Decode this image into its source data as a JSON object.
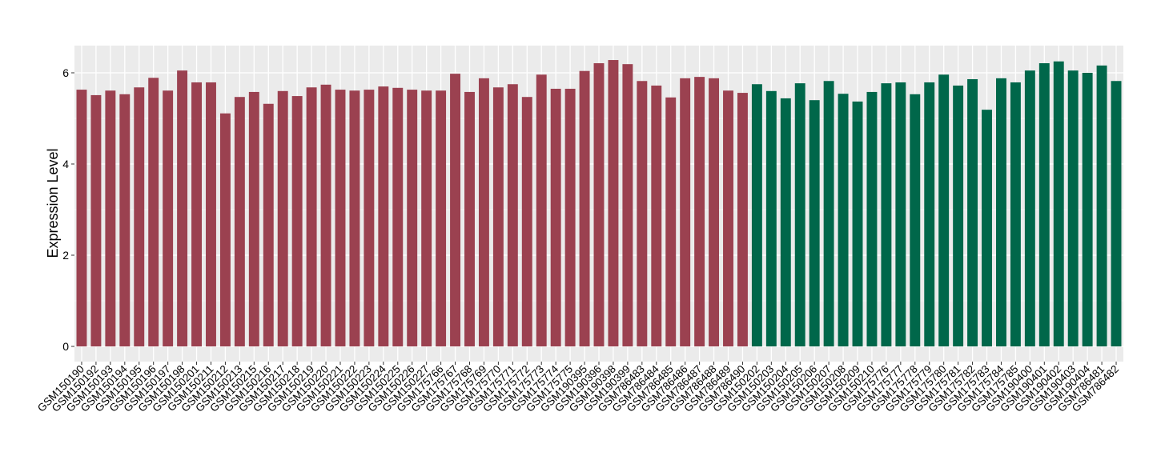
{
  "chart_data": {
    "type": "bar",
    "title": "",
    "xlabel": "",
    "ylabel": "Expression Level",
    "ylim": [
      0,
      6.55
    ],
    "yticks": [
      0,
      2,
      4,
      6
    ],
    "grid": true,
    "legend": "none",
    "colors": {
      "group1": "#9b4150",
      "group2": "#00674a",
      "panel": "#ebebeb",
      "grid": "#ffffff"
    },
    "series": [
      {
        "color": "#9b4150",
        "categories": [
          "GSM150190",
          "GSM150192",
          "GSM150193",
          "GSM150194",
          "GSM150195",
          "GSM150196",
          "GSM150197",
          "GSM150198",
          "GSM150201",
          "GSM150211",
          "GSM150212",
          "GSM150213",
          "GSM150215",
          "GSM150216",
          "GSM150217",
          "GSM150218",
          "GSM150219",
          "GSM150220",
          "GSM150221",
          "GSM150222",
          "GSM150223",
          "GSM150224",
          "GSM150225",
          "GSM150226",
          "GSM150227",
          "GSM175766",
          "GSM175767",
          "GSM175768",
          "GSM175769",
          "GSM175770",
          "GSM175771",
          "GSM175772",
          "GSM175773",
          "GSM175774",
          "GSM175775",
          "GSM190395",
          "GSM190396",
          "GSM190398",
          "GSM190399",
          "GSM786483",
          "GSM786484",
          "GSM786485",
          "GSM786486",
          "GSM786487",
          "GSM786488",
          "GSM786489",
          "GSM786490"
        ],
        "values": [
          5.63,
          5.51,
          5.61,
          5.53,
          5.68,
          5.89,
          5.61,
          6.05,
          5.79,
          5.79,
          5.11,
          5.47,
          5.58,
          5.32,
          5.6,
          5.49,
          5.68,
          5.74,
          5.63,
          5.61,
          5.63,
          5.7,
          5.67,
          5.63,
          5.61,
          5.61,
          5.98,
          5.58,
          5.88,
          5.68,
          5.75,
          5.47,
          5.96,
          5.65,
          5.65,
          6.04,
          6.21,
          6.28,
          6.19,
          5.82,
          5.72,
          5.46,
          5.88,
          5.91,
          5.88,
          5.61,
          5.56
        ]
      },
      {
        "color": "#00674a",
        "categories": [
          "GSM150202",
          "GSM150203",
          "GSM150204",
          "GSM150205",
          "GSM150206",
          "GSM150207",
          "GSM150208",
          "GSM150209",
          "GSM150210",
          "GSM175776",
          "GSM175777",
          "GSM175778",
          "GSM175779",
          "GSM175780",
          "GSM175781",
          "GSM175782",
          "GSM175783",
          "GSM175784",
          "GSM175785",
          "GSM190400",
          "GSM190401",
          "GSM190402",
          "GSM190403",
          "GSM190404",
          "GSM786481",
          "GSM786482"
        ],
        "values": [
          5.75,
          5.6,
          5.44,
          5.77,
          5.4,
          5.82,
          5.54,
          5.37,
          5.58,
          5.77,
          5.79,
          5.53,
          5.79,
          5.96,
          5.72,
          5.86,
          5.19,
          5.88,
          5.79,
          6.05,
          6.21,
          6.25,
          6.05,
          6.0,
          6.16,
          5.82
        ]
      }
    ]
  }
}
